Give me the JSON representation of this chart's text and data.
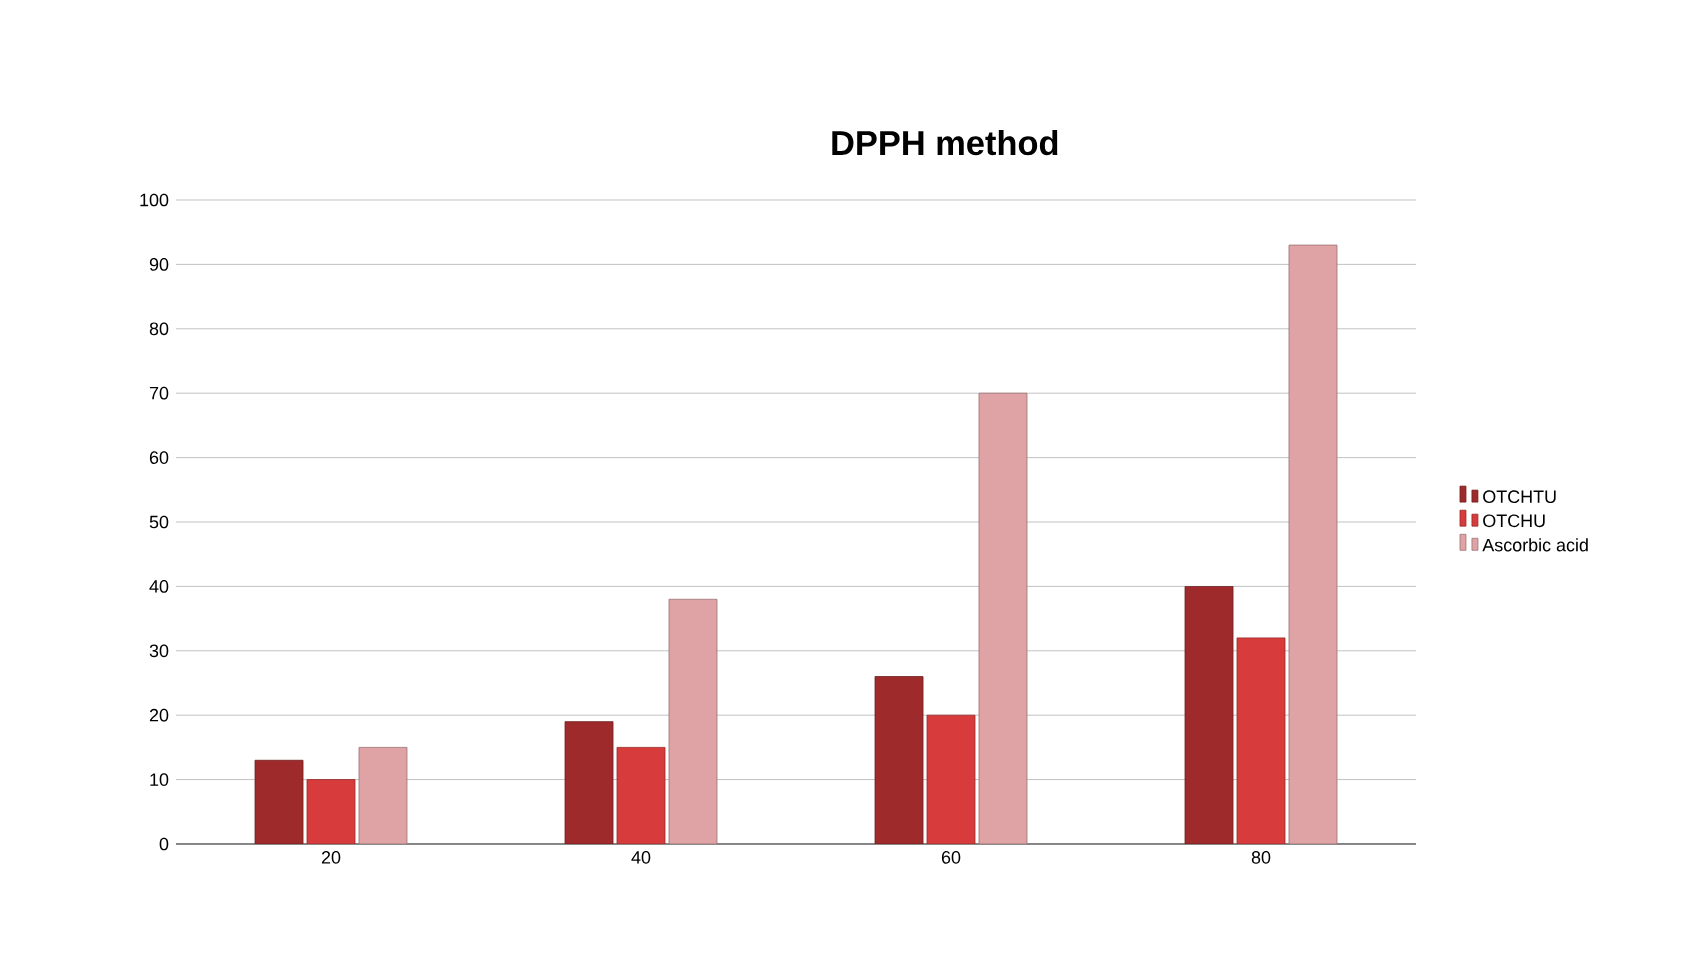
{
  "chart_data": {
    "type": "bar",
    "title": "DPPH method",
    "categories": [
      "20",
      "40",
      "60",
      "80"
    ],
    "series": [
      {
        "name": "OTCHTU",
        "color": "#9e2a2b",
        "values": [
          13,
          19,
          26,
          40
        ]
      },
      {
        "name": "OTCHU",
        "color": "#d83b3b",
        "values": [
          10,
          15,
          20,
          32
        ]
      },
      {
        "name": "Ascorbic acid",
        "color": "#dfa3a6",
        "values": [
          15,
          38,
          70,
          93
        ]
      }
    ],
    "ylim": [
      0,
      100
    ],
    "yticks": [
      0,
      10,
      20,
      30,
      40,
      50,
      60,
      70,
      80,
      90,
      100
    ],
    "grid": "y",
    "legend": "right"
  }
}
